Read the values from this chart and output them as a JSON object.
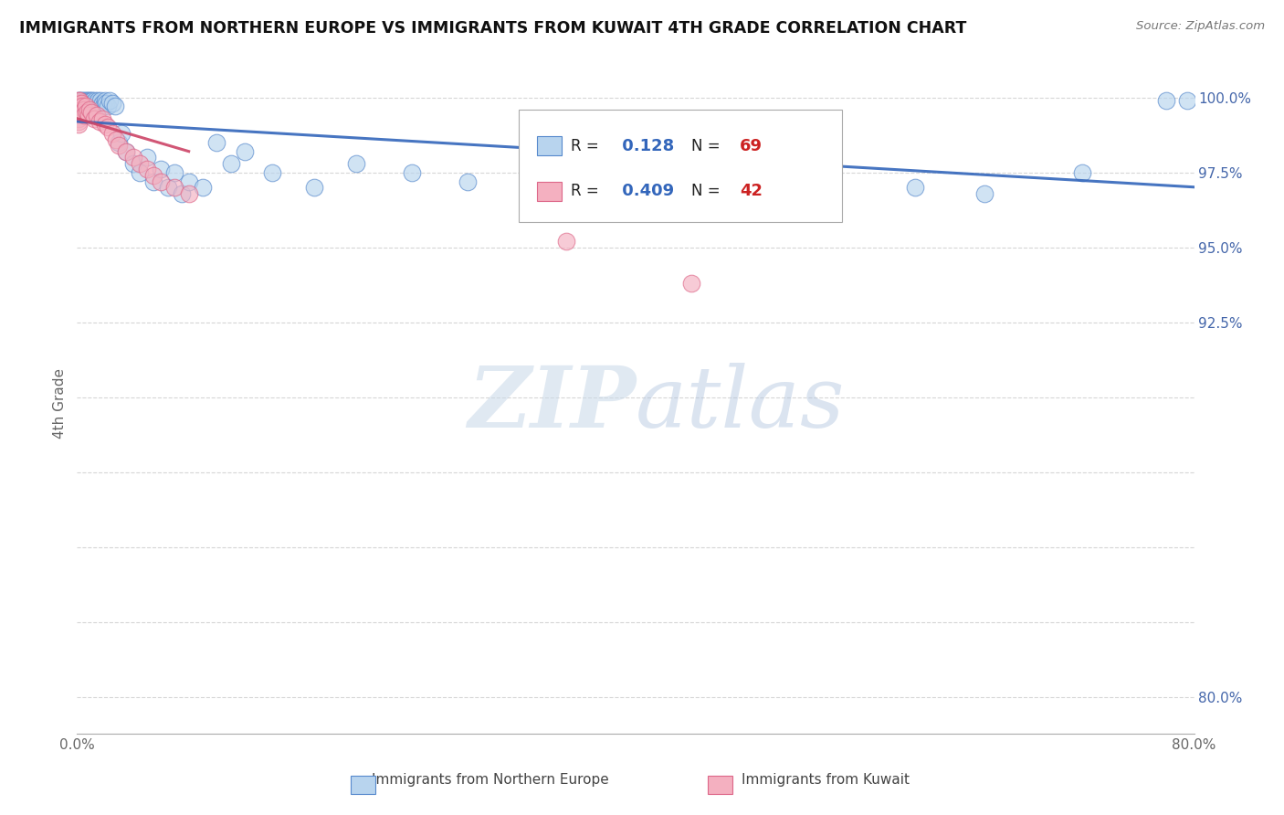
{
  "title": "IMMIGRANTS FROM NORTHERN EUROPE VS IMMIGRANTS FROM KUWAIT 4TH GRADE CORRELATION CHART",
  "source": "Source: ZipAtlas.com",
  "ylabel": "4th Grade",
  "xlim": [
    0.0,
    0.8
  ],
  "ylim": [
    0.788,
    1.008
  ],
  "ytick_vals": [
    0.8,
    0.825,
    0.85,
    0.875,
    0.9,
    0.925,
    0.95,
    0.975,
    1.0
  ],
  "ytick_labels": [
    "80.0%",
    "",
    "",
    "",
    "",
    "92.5%",
    "95.0%",
    "97.5%",
    "100.0%"
  ],
  "xtick_vals": [
    0.0,
    0.1,
    0.2,
    0.3,
    0.4,
    0.5,
    0.6,
    0.7,
    0.8
  ],
  "xtick_labels": [
    "0.0%",
    "",
    "",
    "",
    "",
    "",
    "",
    "",
    "80.0%"
  ],
  "legend_blue_R": "0.128",
  "legend_blue_N": "69",
  "legend_pink_R": "0.409",
  "legend_pink_N": "42",
  "blue_fill": "#b8d4ee",
  "pink_fill": "#f4b0c0",
  "blue_edge": "#5588cc",
  "pink_edge": "#dd6688",
  "blue_line": "#3366bb",
  "pink_line": "#cc4466",
  "watermark_color": "#c8d8e8",
  "blue_scatter_x": [
    0.001,
    0.001,
    0.002,
    0.002,
    0.002,
    0.003,
    0.003,
    0.003,
    0.004,
    0.004,
    0.005,
    0.005,
    0.005,
    0.006,
    0.006,
    0.007,
    0.007,
    0.008,
    0.008,
    0.009,
    0.009,
    0.01,
    0.01,
    0.01,
    0.011,
    0.012,
    0.012,
    0.013,
    0.014,
    0.015,
    0.016,
    0.017,
    0.018,
    0.019,
    0.02,
    0.021,
    0.022,
    0.023,
    0.025,
    0.027,
    0.03,
    0.032,
    0.035,
    0.04,
    0.045,
    0.05,
    0.055,
    0.06,
    0.065,
    0.07,
    0.075,
    0.08,
    0.09,
    0.1,
    0.11,
    0.12,
    0.14,
    0.17,
    0.2,
    0.24,
    0.28,
    0.33,
    0.38,
    0.5,
    0.6,
    0.65,
    0.72,
    0.78,
    0.795
  ],
  "blue_scatter_y": [
    0.999,
    0.998,
    0.999,
    0.998,
    0.997,
    0.999,
    0.998,
    0.997,
    0.999,
    0.998,
    0.999,
    0.998,
    0.997,
    0.999,
    0.998,
    0.999,
    0.998,
    0.999,
    0.997,
    0.999,
    0.998,
    0.999,
    0.998,
    0.997,
    0.999,
    0.998,
    0.997,
    0.999,
    0.998,
    0.999,
    0.997,
    0.999,
    0.998,
    0.997,
    0.999,
    0.998,
    0.997,
    0.999,
    0.998,
    0.997,
    0.985,
    0.988,
    0.982,
    0.978,
    0.975,
    0.98,
    0.972,
    0.976,
    0.97,
    0.975,
    0.968,
    0.972,
    0.97,
    0.985,
    0.978,
    0.982,
    0.975,
    0.97,
    0.978,
    0.975,
    0.972,
    0.97,
    0.968,
    0.965,
    0.97,
    0.968,
    0.975,
    0.999,
    0.999
  ],
  "pink_scatter_x": [
    0.001,
    0.001,
    0.001,
    0.001,
    0.001,
    0.001,
    0.001,
    0.001,
    0.001,
    0.002,
    0.002,
    0.002,
    0.003,
    0.003,
    0.004,
    0.004,
    0.005,
    0.005,
    0.006,
    0.007,
    0.008,
    0.009,
    0.01,
    0.012,
    0.014,
    0.016,
    0.018,
    0.02,
    0.022,
    0.025,
    0.028,
    0.03,
    0.035,
    0.04,
    0.045,
    0.05,
    0.055,
    0.06,
    0.07,
    0.08,
    0.35,
    0.44
  ],
  "pink_scatter_y": [
    0.999,
    0.998,
    0.997,
    0.996,
    0.995,
    0.994,
    0.993,
    0.992,
    0.991,
    0.999,
    0.997,
    0.995,
    0.998,
    0.996,
    0.997,
    0.995,
    0.996,
    0.994,
    0.997,
    0.995,
    0.994,
    0.996,
    0.995,
    0.993,
    0.994,
    0.992,
    0.993,
    0.991,
    0.99,
    0.988,
    0.986,
    0.984,
    0.982,
    0.98,
    0.978,
    0.976,
    0.974,
    0.972,
    0.97,
    0.968,
    0.952,
    0.938
  ]
}
